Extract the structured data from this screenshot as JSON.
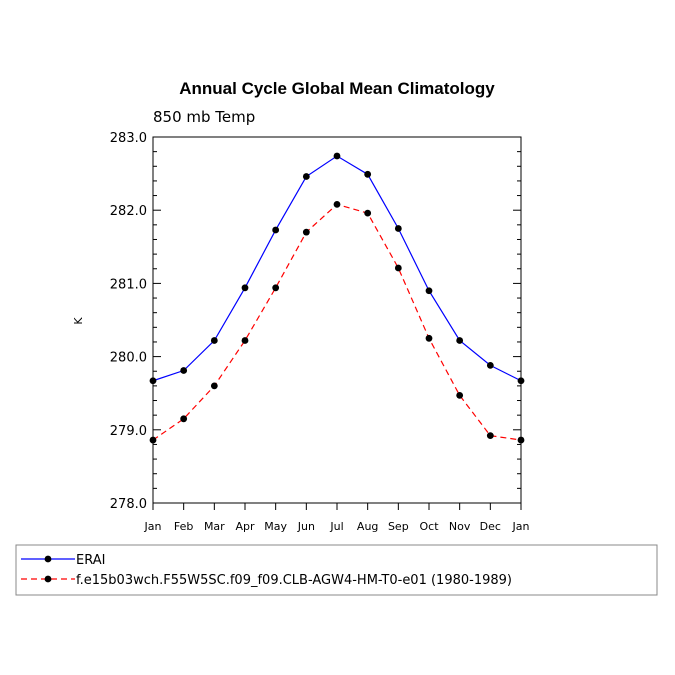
{
  "chart_data": {
    "type": "line",
    "title": "Annual Cycle Global Mean Climatology",
    "subtitle": "850 mb Temp",
    "ylabel": "K",
    "xlabel": "",
    "categories": [
      "Jan",
      "Feb",
      "Mar",
      "Apr",
      "May",
      "Jun",
      "Jul",
      "Aug",
      "Sep",
      "Oct",
      "Nov",
      "Dec",
      "Jan"
    ],
    "ylim": [
      278.0,
      283.0
    ],
    "yticks": [
      "278.0",
      "279.0",
      "280.0",
      "281.0",
      "282.0",
      "283.0"
    ],
    "grid": false,
    "legend_position": "bottom",
    "series": [
      {
        "name": "ERAI",
        "color": "#0000ff",
        "line_style": "solid",
        "marker": "filled-circle",
        "values": [
          279.67,
          279.81,
          280.22,
          280.94,
          281.73,
          282.46,
          282.74,
          282.49,
          281.75,
          280.9,
          280.22,
          279.88,
          279.67
        ]
      },
      {
        "name": "f.e15b03wch.F55W5SC.f09_f09.CLB-AGW4-HM-T0-e01 (1980-1989)",
        "color": "#ff0000",
        "line_style": "dashed",
        "marker": "filled-circle",
        "values": [
          278.86,
          279.15,
          279.6,
          280.22,
          280.94,
          281.7,
          282.08,
          281.96,
          281.21,
          280.25,
          279.47,
          278.92,
          278.86
        ]
      }
    ]
  }
}
